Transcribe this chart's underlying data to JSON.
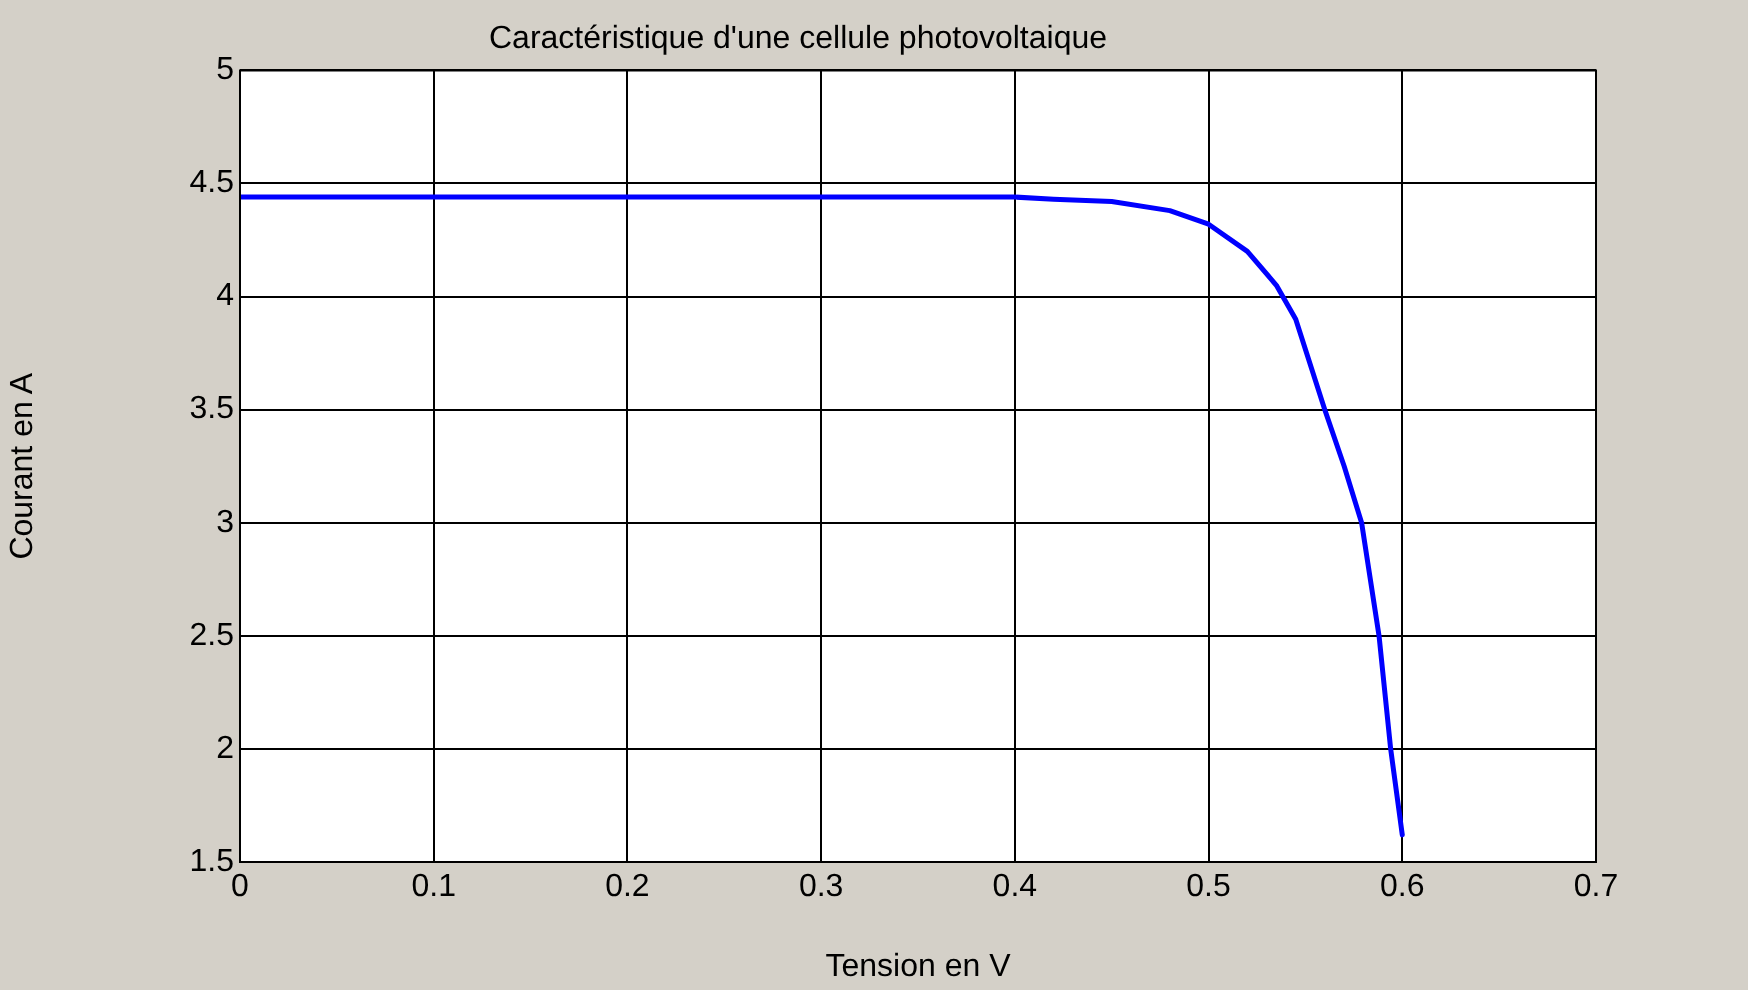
{
  "chart_data": {
    "type": "line",
    "title": "Caractéristique d'une cellule photovoltaique",
    "xlabel": "Tension en V",
    "ylabel": "Courant en A",
    "series": [
      {
        "color": "#0000ff",
        "x": [
          0,
          0.4,
          0.42,
          0.45,
          0.48,
          0.5,
          0.52,
          0.535,
          0.545,
          0.56,
          0.57,
          0.579,
          0.588,
          0.594,
          0.6
        ],
        "values": [
          4.44,
          4.44,
          4.43,
          4.42,
          4.38,
          4.32,
          4.2,
          4.05,
          3.9,
          3.5,
          3.25,
          3.0,
          2.5,
          2.0,
          1.62
        ]
      }
    ],
    "xlim": [
      0,
      0.7
    ],
    "xticks": [
      0,
      0.1,
      0.2,
      0.3,
      0.4,
      0.5,
      0.6,
      0.7
    ],
    "ylim": [
      1.5,
      5
    ],
    "yticks": [
      1.5,
      2,
      2.5,
      3,
      3.5,
      4,
      4.5,
      5
    ],
    "grid": true,
    "legend": false,
    "marker": "none",
    "line_style": "solid"
  }
}
